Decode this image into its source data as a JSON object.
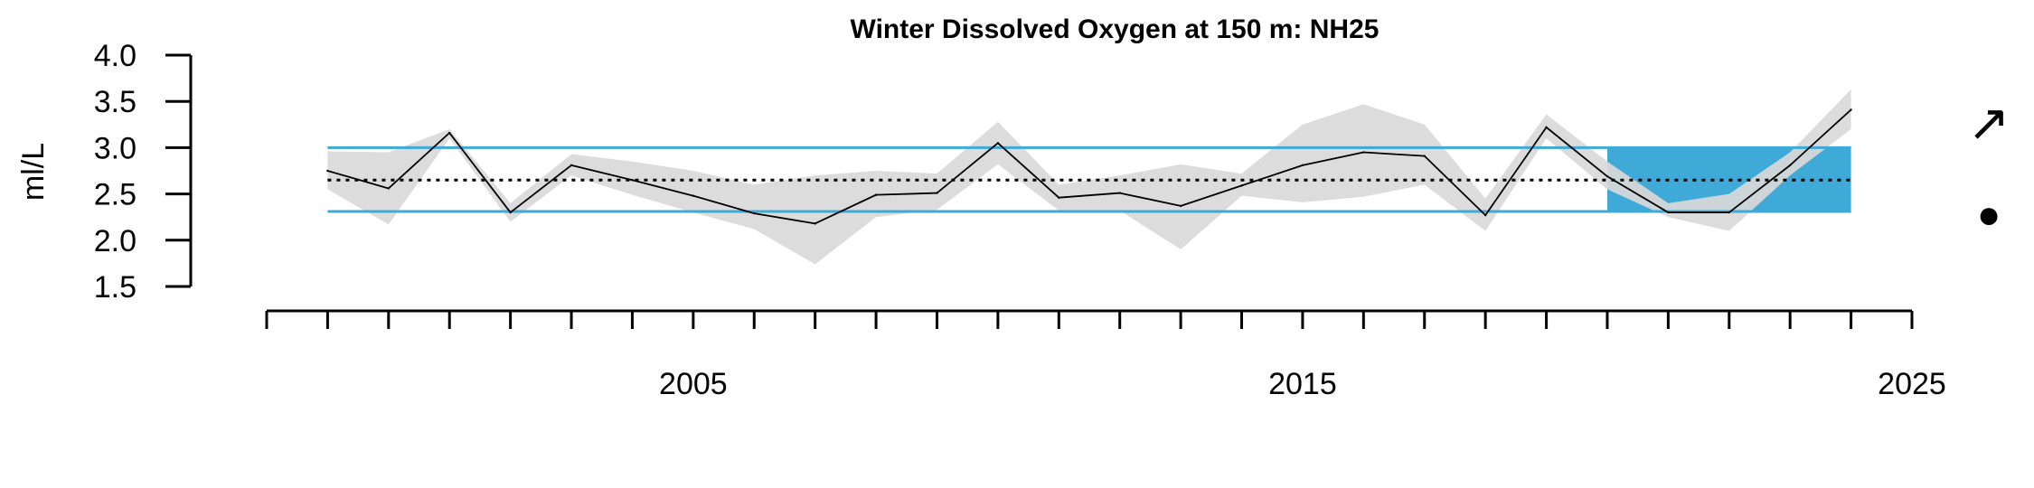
{
  "chart_data": {
    "type": "line",
    "title": "Winter Dissolved Oxygen at 150 m: NH25",
    "ylabel": "ml/L",
    "xlabel": "",
    "ylim": [
      1.5,
      4.0
    ],
    "xlim": [
      1998,
      2025
    ],
    "y_ticks": [
      "1.5",
      "2.0",
      "2.5",
      "3.0",
      "3.5",
      "4.0"
    ],
    "x_tick_labels": [
      "2005",
      "2015",
      "2025"
    ],
    "mean_line": 2.65,
    "sd_upper": 3.0,
    "sd_lower": 2.31,
    "recent_window": [
      2020,
      2024
    ],
    "trend_symbol": "↗",
    "mean_symbol": "●",
    "colors": {
      "line": "#000000",
      "band": "#d9d9d9",
      "sd_lines": "#3fa9d7",
      "highlight": "#3fa9d7"
    },
    "series": [
      {
        "x": [
          1999,
          2000,
          2001,
          2002,
          2003,
          2004,
          2005,
          2006,
          2007,
          2008,
          2009,
          2010,
          2011,
          2012,
          2013,
          2014,
          2015,
          2016,
          2017,
          2018,
          2019,
          2020,
          2021,
          2022,
          2023,
          2024
        ],
        "values": [
          2.75,
          2.56,
          3.16,
          2.3,
          2.81,
          2.65,
          2.48,
          2.29,
          2.18,
          2.49,
          2.51,
          3.05,
          2.46,
          2.51,
          2.37,
          2.59,
          2.81,
          2.95,
          2.91,
          2.27,
          3.22,
          2.69,
          2.3,
          2.3,
          2.81,
          3.41
        ],
        "upper": [
          2.96,
          2.95,
          3.2,
          2.4,
          2.93,
          2.85,
          2.75,
          2.6,
          2.7,
          2.75,
          2.72,
          3.28,
          2.6,
          2.7,
          2.82,
          2.72,
          3.25,
          3.47,
          3.25,
          2.45,
          3.36,
          2.85,
          2.4,
          2.5,
          2.95,
          3.63
        ],
        "lower": [
          2.55,
          2.17,
          3.1,
          2.2,
          2.7,
          2.49,
          2.3,
          2.12,
          1.74,
          2.25,
          2.33,
          2.82,
          2.32,
          2.32,
          1.9,
          2.48,
          2.41,
          2.47,
          2.6,
          2.1,
          3.1,
          2.55,
          2.25,
          2.1,
          2.7,
          3.2
        ]
      }
    ]
  }
}
